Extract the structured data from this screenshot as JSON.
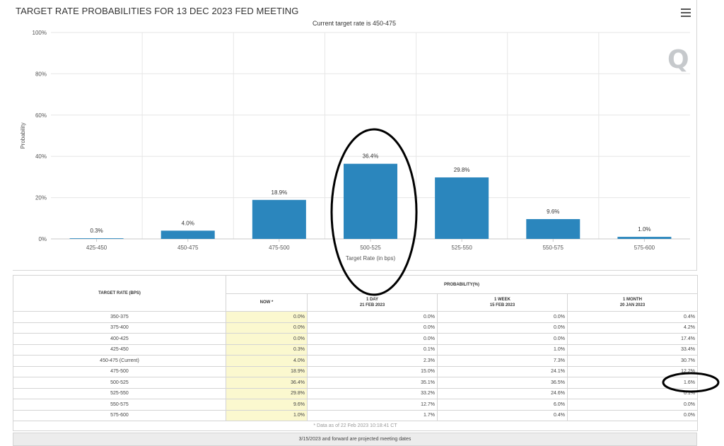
{
  "chart_data": {
    "type": "bar",
    "title": "TARGET RATE PROBABILITIES FOR 13 DEC 2023 FED MEETING",
    "subtitle": "Current target rate is 450-475",
    "xlabel": "Target Rate (in bps)",
    "ylabel": "Probability",
    "categories": [
      "425-450",
      "450-475",
      "475-500",
      "500-525",
      "525-550",
      "550-575",
      "575-600"
    ],
    "values": [
      0.3,
      4.0,
      18.9,
      36.4,
      29.8,
      9.6,
      1.0
    ],
    "data_labels": [
      "0.3%",
      "4.0%",
      "18.9%",
      "36.4%",
      "29.8%",
      "9.6%",
      "1.0%"
    ],
    "ylim": [
      0,
      100
    ],
    "yticks": [
      0,
      20,
      40,
      60,
      80,
      100
    ],
    "ytick_labels": [
      "0%",
      "20%",
      "40%",
      "60%",
      "80%",
      "100%"
    ],
    "grid": true,
    "legend": "none",
    "bar_color": "#2b86bd"
  },
  "logo": {
    "text": "Q",
    "color": "#b9bcc0"
  },
  "menu": {
    "icon": "hamburger-menu-icon"
  },
  "table": {
    "row_header": "TARGET RATE (BPS)",
    "group_header": "PROBABILITY(%)",
    "columns": [
      {
        "line1": "NOW *",
        "line2": ""
      },
      {
        "line1": "1 DAY",
        "line2": "21 FEB 2023"
      },
      {
        "line1": "1 WEEK",
        "line2": "15 FEB 2023"
      },
      {
        "line1": "1 MONTH",
        "line2": "20 JAN 2023"
      }
    ],
    "rows": [
      {
        "range": "350-375",
        "now": "0.0%",
        "day": "0.0%",
        "week": "0.0%",
        "month": "0.4%"
      },
      {
        "range": "375-400",
        "now": "0.0%",
        "day": "0.0%",
        "week": "0.0%",
        "month": "4.2%"
      },
      {
        "range": "400-425",
        "now": "0.0%",
        "day": "0.0%",
        "week": "0.0%",
        "month": "17.4%"
      },
      {
        "range": "425-450",
        "now": "0.3%",
        "day": "0.1%",
        "week": "1.0%",
        "month": "33.4%"
      },
      {
        "range": "450-475 (Current)",
        "now": "4.0%",
        "day": "2.3%",
        "week": "7.3%",
        "month": "30.7%"
      },
      {
        "range": "475-500",
        "now": "18.9%",
        "day": "15.0%",
        "week": "24.1%",
        "month": "12.2%"
      },
      {
        "range": "500-525",
        "now": "36.4%",
        "day": "35.1%",
        "week": "36.5%",
        "month": "1.6%"
      },
      {
        "range": "525-550",
        "now": "29.8%",
        "day": "33.2%",
        "week": "24.6%",
        "month": "0.1%"
      },
      {
        "range": "550-575",
        "now": "9.6%",
        "day": "12.7%",
        "week": "6.0%",
        "month": "0.0%"
      },
      {
        "range": "575-600",
        "now": "1.0%",
        "day": "1.7%",
        "week": "0.4%",
        "month": "0.0%"
      }
    ],
    "footnote": "* Data as of 22 Feb 2023 10:18:41 CT",
    "footer": "3/15/2023 and forward are projected meeting dates"
  }
}
